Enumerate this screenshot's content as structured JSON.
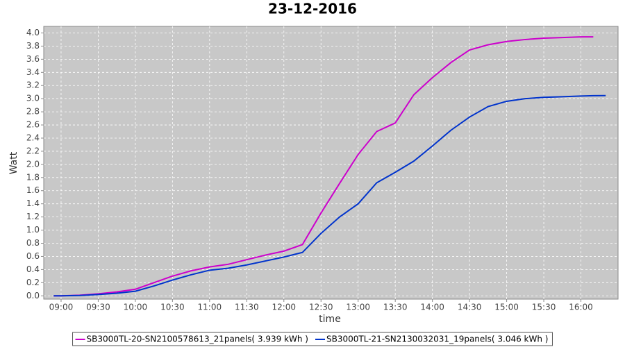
{
  "chart_data": {
    "type": "line",
    "title": "23-12-2016",
    "xlabel": "time",
    "ylabel": "Watt",
    "x": [
      534,
      540,
      555,
      570,
      585,
      600,
      615,
      630,
      645,
      660,
      675,
      690,
      705,
      720,
      735,
      750,
      765,
      780,
      795,
      810,
      825,
      840,
      855,
      870,
      885,
      900,
      915,
      930,
      945,
      960,
      970,
      980
    ],
    "series": [
      {
        "name": "SB3000TL-20-SN2100578613_21panels( 3.939 kWh )",
        "color": "#cc00cc",
        "values": [
          0,
          0,
          0.01,
          0.03,
          0.06,
          0.1,
          0.2,
          0.3,
          0.38,
          0.44,
          0.48,
          0.55,
          0.62,
          0.68,
          0.78,
          1.26,
          1.71,
          2.15,
          2.5,
          2.63,
          3.06,
          3.32,
          3.55,
          3.74,
          3.82,
          3.87,
          3.9,
          3.92,
          3.93,
          3.94,
          3.94,
          null
        ]
      },
      {
        "name": "SB3000TL-21-SN2130032031_19panels( 3.046 kWh )",
        "color": "#0033cc",
        "values": [
          0,
          0,
          0.005,
          0.02,
          0.04,
          0.07,
          0.15,
          0.24,
          0.32,
          0.39,
          0.42,
          0.47,
          0.53,
          0.59,
          0.66,
          0.95,
          1.2,
          1.4,
          1.72,
          1.88,
          2.05,
          2.28,
          2.52,
          2.72,
          2.88,
          2.96,
          3.0,
          3.02,
          3.03,
          3.04,
          3.045,
          3.046
        ]
      }
    ],
    "xlim": [
      526,
      990
    ],
    "xticks": [
      {
        "value": 540,
        "label": "09:00"
      },
      {
        "value": 570,
        "label": "09:30"
      },
      {
        "value": 600,
        "label": "10:00"
      },
      {
        "value": 630,
        "label": "10:30"
      },
      {
        "value": 660,
        "label": "11:00"
      },
      {
        "value": 690,
        "label": "11:30"
      },
      {
        "value": 720,
        "label": "12:00"
      },
      {
        "value": 750,
        "label": "12:30"
      },
      {
        "value": 780,
        "label": "13:00"
      },
      {
        "value": 810,
        "label": "13:30"
      },
      {
        "value": 840,
        "label": "14:00"
      },
      {
        "value": 870,
        "label": "14:30"
      },
      {
        "value": 900,
        "label": "15:00"
      },
      {
        "value": 930,
        "label": "15:30"
      },
      {
        "value": 960,
        "label": "16:00"
      }
    ],
    "ylim": [
      -0.05,
      4.1
    ],
    "yticks": [
      {
        "value": 0,
        "label": "0.0"
      },
      0.2,
      0.4,
      0.6,
      0.8,
      {
        "value": 1,
        "label": "1.0"
      },
      1.2,
      1.4,
      1.6,
      1.8,
      {
        "value": 2,
        "label": "2.0"
      },
      2.2,
      2.4,
      2.6,
      2.8,
      {
        "value": 3,
        "label": "3.0"
      },
      3.2,
      3.4,
      3.6,
      3.8,
      {
        "value": 4,
        "label": "4.0"
      }
    ],
    "grid": true,
    "plot_background": "#c8c8c8"
  }
}
